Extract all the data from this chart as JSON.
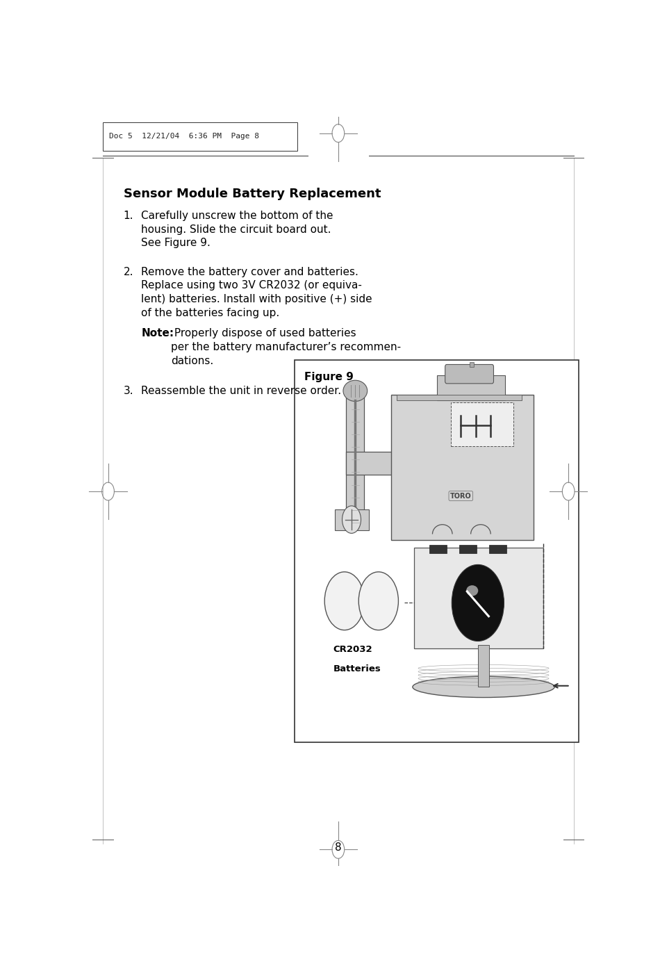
{
  "title": "Sensor Module Battery Replacement",
  "header_text": "Doc 5  12/21/04  6:36 PM  Page 8",
  "step1": "Carefully unscrew the bottom of the\nhousing. Slide the circuit board out.\nSee Figure 9.",
  "step2_main": "Remove the battery cover and batteries.\nReplace using two 3V CR2032 (or equiva-\nlent) batteries. Install with positive (+) side\nof the batteries facing up.",
  "step2_note_bold": "Note:",
  "step2_note_rest": " Properly dispose of used batteries\nper the battery manufacturer’s recommen-\ndations.",
  "step3": "Reassemble the unit in reverse order.",
  "figure_label": "Figure 9",
  "battery_label_line1": "CR2032",
  "battery_label_line2": "Batteries",
  "page_number": "8",
  "bg_color": "#ffffff",
  "text_color": "#000000"
}
